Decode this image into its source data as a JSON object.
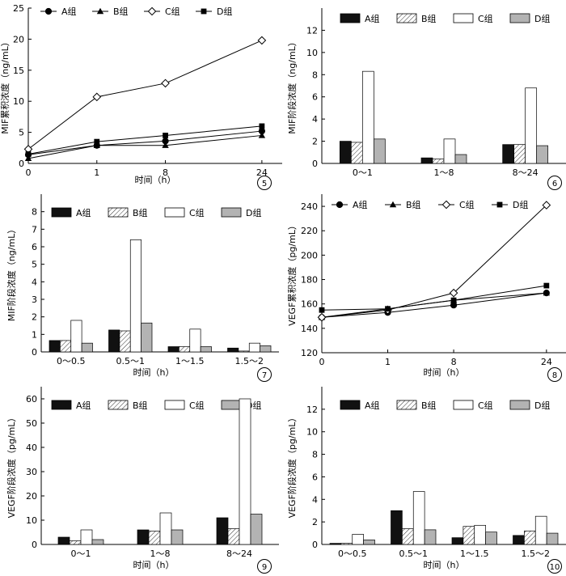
{
  "chart_data": [
    {
      "type": "line",
      "panel_number": "5",
      "x": [
        "0",
        "1",
        "8",
        "24"
      ],
      "xlabel": "时间（h）",
      "ylabel": "MIF累积浓度（ng/mL）",
      "ylim": [
        0,
        25
      ],
      "yticks": [
        0,
        5,
        10,
        15,
        20,
        25
      ],
      "series": [
        {
          "name": "A组",
          "marker": "circle",
          "values": [
            1.4,
            2.9,
            3.6,
            5.2
          ]
        },
        {
          "name": "B组",
          "marker": "triangle",
          "values": [
            0.8,
            2.9,
            2.9,
            4.5
          ]
        },
        {
          "name": "C组",
          "marker": "diamond",
          "values": [
            2.3,
            10.7,
            12.9,
            19.8
          ]
        },
        {
          "name": "D组",
          "marker": "square",
          "values": [
            1.5,
            3.5,
            4.5,
            6.0
          ]
        }
      ],
      "legend": "top"
    },
    {
      "type": "bar",
      "panel_number": "6",
      "categories": [
        "0～1",
        "1～8",
        "8～24"
      ],
      "xlabel": "",
      "ylabel": "MIF阶段浓度（ng/mL）",
      "ylim": [
        0,
        14
      ],
      "yticks": [
        0,
        2,
        4,
        6,
        8,
        10,
        12
      ],
      "series": [
        {
          "name": "A组",
          "values": [
            2.0,
            0.5,
            1.7
          ]
        },
        {
          "name": "B组",
          "values": [
            1.9,
            0.4,
            1.7
          ]
        },
        {
          "name": "C组",
          "values": [
            8.3,
            2.2,
            6.8
          ]
        },
        {
          "name": "D组",
          "values": [
            2.2,
            0.8,
            1.6
          ]
        }
      ],
      "legend": "top"
    },
    {
      "type": "bar",
      "panel_number": "7",
      "categories": [
        "0～0.5",
        "0.5～1",
        "1～1.5",
        "1.5～2"
      ],
      "xlabel": "时间（h）",
      "ylabel": "MIF阶段浓度（ng/mL）",
      "ylim": [
        0,
        9
      ],
      "yticks": [
        0,
        1,
        2,
        3,
        4,
        5,
        6,
        7,
        8
      ],
      "series": [
        {
          "name": "A组",
          "values": [
            0.65,
            1.25,
            0.3,
            0.22
          ]
        },
        {
          "name": "B组",
          "values": [
            0.65,
            1.2,
            0.3,
            0.05
          ]
        },
        {
          "name": "C组",
          "values": [
            1.8,
            6.4,
            1.3,
            0.5
          ]
        },
        {
          "name": "D组",
          "values": [
            0.5,
            1.65,
            0.3,
            0.35
          ]
        }
      ],
      "legend": "top"
    },
    {
      "type": "line",
      "panel_number": "8",
      "x": [
        "0",
        "1",
        "8",
        "24"
      ],
      "xlabel": "时间（h）",
      "ylabel": "VEGF累积浓度（pg/mL）",
      "ylim": [
        120,
        250
      ],
      "yticks": [
        120,
        140,
        160,
        180,
        200,
        220,
        240
      ],
      "series": [
        {
          "name": "A组",
          "marker": "circle",
          "values": [
            149,
            153,
            159,
            169
          ]
        },
        {
          "name": "B组",
          "marker": "triangle",
          "values": [
            149,
            156,
            163,
            169
          ]
        },
        {
          "name": "C组",
          "marker": "diamond",
          "values": [
            149,
            155,
            169,
            241
          ]
        },
        {
          "name": "D组",
          "marker": "square",
          "values": [
            155,
            156,
            163,
            175
          ]
        }
      ],
      "legend": "top"
    },
    {
      "type": "bar",
      "panel_number": "9",
      "categories": [
        "0～1",
        "1～8",
        "8～24"
      ],
      "xlabel": "时间（h）",
      "ylabel": "VEGF阶段浓度（pg/mL）",
      "ylim": [
        0,
        65
      ],
      "yticks": [
        0,
        10,
        20,
        30,
        40,
        50,
        60
      ],
      "series": [
        {
          "name": "A组",
          "values": [
            3,
            6,
            11
          ]
        },
        {
          "name": "B组",
          "values": [
            1.5,
            5.5,
            6.5
          ]
        },
        {
          "name": "C组",
          "values": [
            6,
            13,
            60
          ]
        },
        {
          "name": "D组",
          "values": [
            2,
            6,
            12.5
          ]
        }
      ],
      "legend": "top"
    },
    {
      "type": "bar",
      "panel_number": "10",
      "categories": [
        "0～0.5",
        "0.5～1",
        "1～1.5",
        "1.5～2"
      ],
      "xlabel": "时间（h）",
      "ylabel": "VEGF阶段浓度（pg/mL）",
      "ylim": [
        0,
        14
      ],
      "yticks": [
        0,
        2,
        4,
        6,
        8,
        10,
        12
      ],
      "series": [
        {
          "name": "A组",
          "values": [
            0.1,
            3.0,
            0.6,
            0.8
          ]
        },
        {
          "name": "B组",
          "values": [
            0.1,
            1.4,
            1.6,
            1.2
          ]
        },
        {
          "name": "C组",
          "values": [
            0.9,
            4.7,
            1.7,
            2.5
          ]
        },
        {
          "name": "D组",
          "values": [
            0.4,
            1.3,
            1.1,
            1.0
          ]
        }
      ],
      "legend": "top"
    }
  ]
}
